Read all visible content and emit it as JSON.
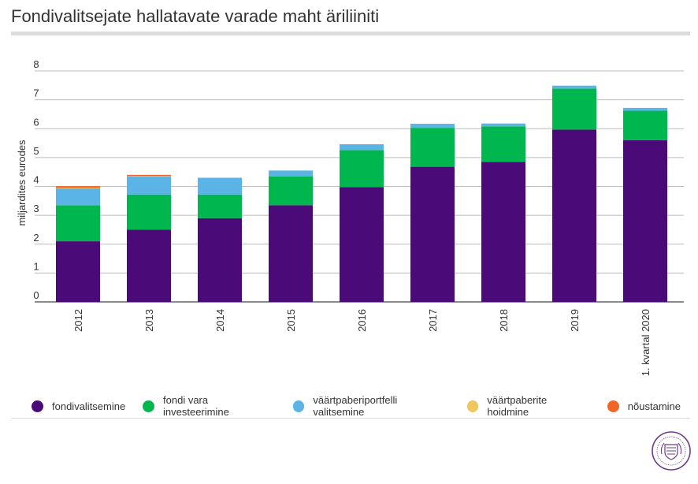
{
  "title": "Fondivalitsejate hallatavate varade maht äriliiniti",
  "chart_data": {
    "type": "bar",
    "stacked": true,
    "title": "Fondivalitsejate hallatavate varade maht äriliiniti",
    "xlabel": "",
    "ylabel": "miljardites eurodes",
    "ylim": [
      0,
      8
    ],
    "yticks": [
      0,
      1,
      2,
      3,
      4,
      5,
      6,
      7,
      8
    ],
    "grid": true,
    "legend_position": "bottom",
    "categories": [
      "2012",
      "2013",
      "2014",
      "2015",
      "2016",
      "2017",
      "2018",
      "2019",
      "1. kvartal 2020"
    ],
    "series": [
      {
        "name": "fondivalitsemine",
        "color": "#4a0a77",
        "values": [
          2.1,
          2.5,
          2.9,
          3.35,
          3.98,
          4.68,
          4.85,
          5.97,
          5.6
        ]
      },
      {
        "name": "fondi vara investeerimine",
        "color": "#00b64f",
        "values": [
          1.25,
          1.22,
          0.82,
          1.0,
          1.28,
          1.35,
          1.23,
          1.42,
          1.02
        ]
      },
      {
        "name": "väärtpaberiportfelli valitsemine",
        "color": "#5ab4e5",
        "values": [
          0.58,
          0.62,
          0.58,
          0.2,
          0.2,
          0.14,
          0.1,
          0.1,
          0.1
        ]
      },
      {
        "name": "väärtpaberite hoidmine",
        "color": "#f0c75e",
        "values": [
          0.02,
          0.02,
          0,
          0,
          0,
          0,
          0,
          0,
          0
        ]
      },
      {
        "name": "nõustamine",
        "color": "#f26522",
        "values": [
          0.06,
          0.04,
          0,
          0,
          0,
          0,
          0,
          0,
          0
        ]
      }
    ]
  }
}
